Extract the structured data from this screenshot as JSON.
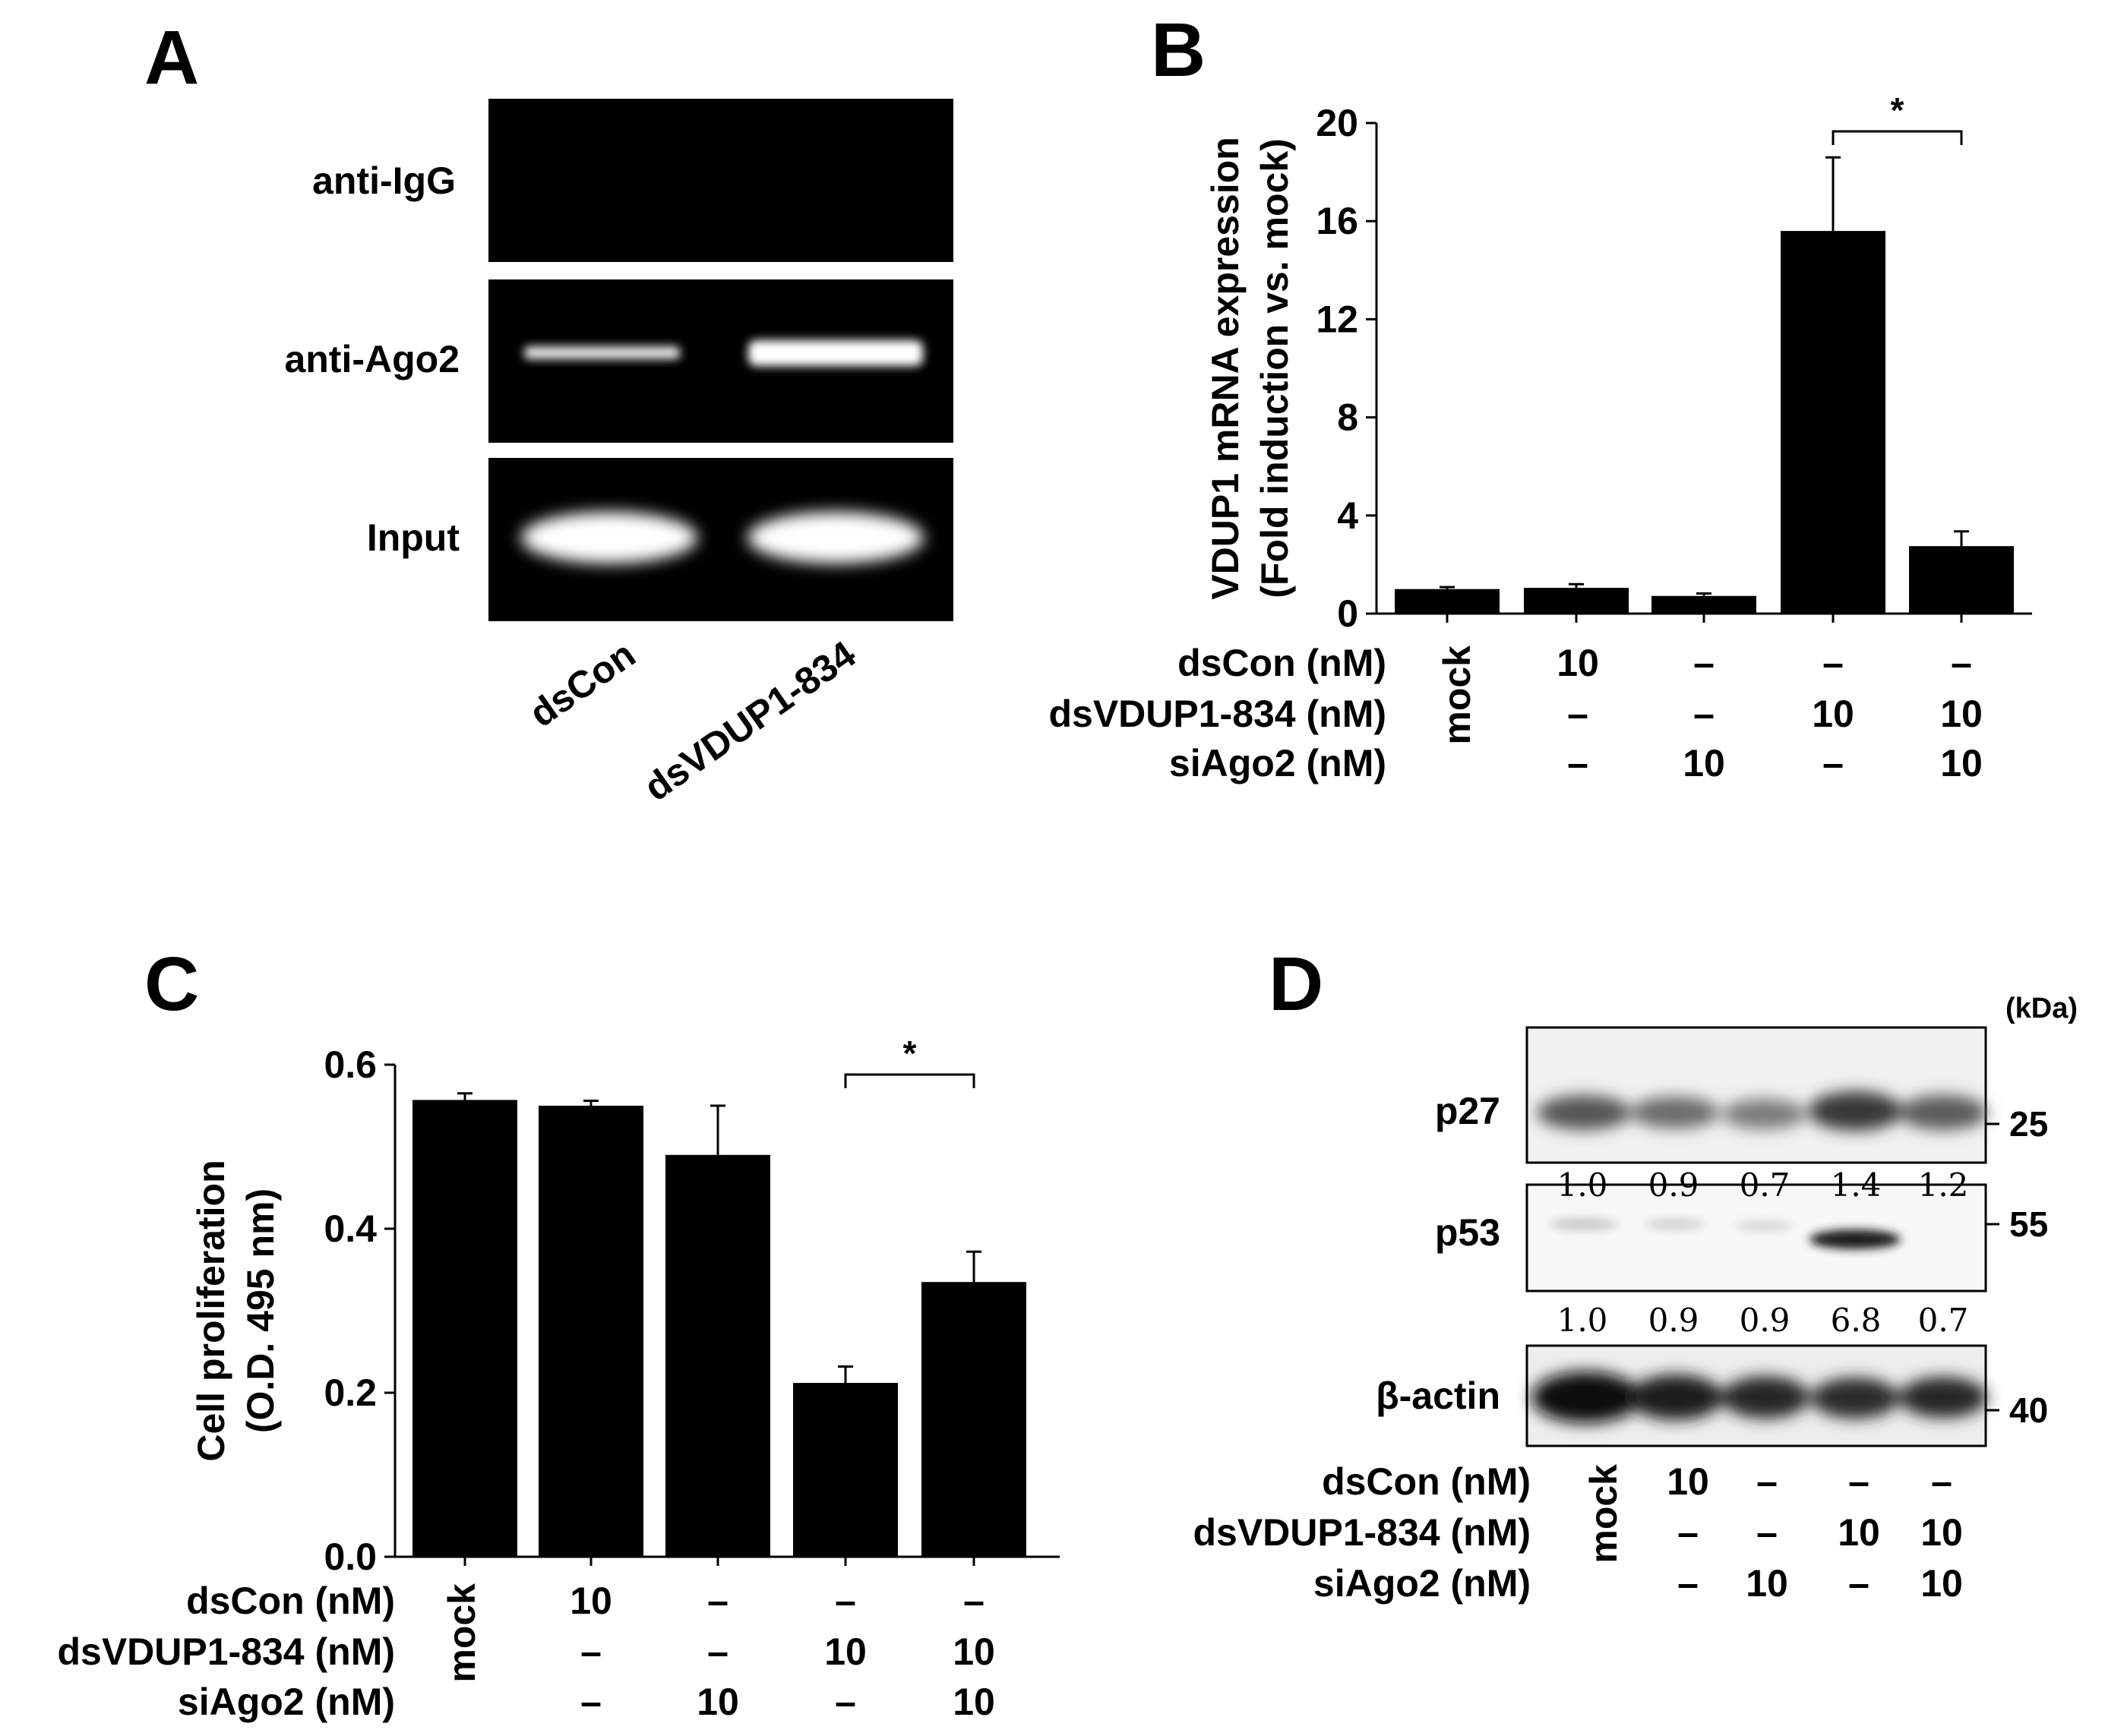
{
  "panels": {
    "A": {
      "letter": "A",
      "rows": [
        "anti-IgG",
        "anti-Ago2",
        "Input"
      ],
      "lanes": [
        "dsCon",
        "dsVDUP1-834"
      ]
    },
    "B": {
      "letter": "B"
    },
    "C": {
      "letter": "C"
    },
    "D": {
      "letter": "D",
      "kda_unit": "(kDa)",
      "blots": [
        {
          "label": "p27",
          "quant": [
            "1.0",
            "0.9",
            "0.7",
            "1.4",
            "1.2"
          ],
          "marker": "25"
        },
        {
          "label": "p53",
          "quant": [
            "1.0",
            "0.9",
            "0.9",
            "6.8",
            "0.7"
          ],
          "marker": "55"
        },
        {
          "label": "β-actin",
          "quant": [],
          "marker": "40"
        }
      ]
    }
  },
  "treatments": {
    "row_labels": [
      "dsCon (nM)",
      "dsVDUP1-834 (nM)",
      "siAgo2 (nM)"
    ],
    "mock_label": "mock",
    "columns": [
      [
        "10",
        "–",
        "–"
      ],
      [
        "–",
        "–",
        "10"
      ],
      [
        "–",
        "10",
        "–"
      ],
      [
        "–",
        "10",
        "10"
      ]
    ]
  },
  "chart_data": [
    {
      "panel": "B",
      "type": "bar",
      "categories": [
        "mock",
        "dsCon 10",
        "siAgo2 10",
        "dsVDUP1-834 10",
        "dsVDUP1-834 10 + siAgo2 10"
      ],
      "values": [
        1.0,
        1.05,
        0.72,
        15.6,
        2.75
      ],
      "errors": [
        0.08,
        0.15,
        0.1,
        3.0,
        0.6
      ],
      "ylabel_lines": [
        "VDUP1 mRNA expression",
        "(Fold induction vs. mock)"
      ],
      "ylim": [
        0,
        20
      ],
      "yticks": [
        "0",
        "4",
        "8",
        "12",
        "16",
        "20"
      ],
      "significance": {
        "between": [
          3,
          4
        ],
        "label": "*"
      }
    },
    {
      "panel": "C",
      "type": "bar",
      "categories": [
        "mock",
        "dsCon 10",
        "siAgo2 10",
        "dsVDUP1-834 10",
        "dsVDUP1-834 10 + siAgo2 10"
      ],
      "values": [
        0.557,
        0.55,
        0.49,
        0.212,
        0.335
      ],
      "errors": [
        0.008,
        0.006,
        0.06,
        0.02,
        0.037
      ],
      "ylabel_lines": [
        "Cell proliferation",
        "(O.D. 495 nm)"
      ],
      "ylim": [
        0,
        0.6
      ],
      "yticks": [
        "0.0",
        "0.2",
        "0.4",
        "0.6"
      ],
      "significance": {
        "between": [
          3,
          4
        ],
        "label": "*"
      }
    }
  ]
}
